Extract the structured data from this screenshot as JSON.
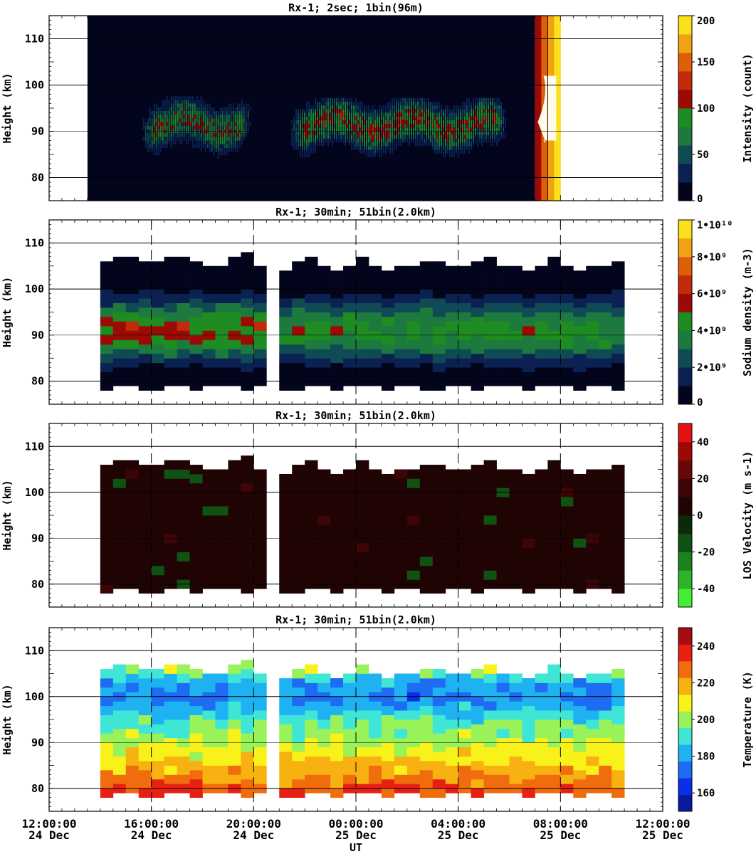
{
  "figure": {
    "xlabel": "UT",
    "x_ticks": [
      {
        "time": "12:00:00",
        "date": "24 Dec"
      },
      {
        "time": "16:00:00",
        "date": "24 Dec"
      },
      {
        "time": "20:00:00",
        "date": "24 Dec"
      },
      {
        "time": "00:00:00",
        "date": "25 Dec"
      },
      {
        "time": "04:00:00",
        "date": "25 Dec"
      },
      {
        "time": "08:00:00",
        "date": "25 Dec"
      },
      {
        "time": "12:00:00",
        "date": "25 Dec"
      }
    ]
  },
  "chart_data": [
    {
      "type": "heatmap",
      "title": "Rx-1;  2sec; 1bin(96m)",
      "ylabel": "Height (km)",
      "y_ticks": [
        80,
        90,
        100,
        110
      ],
      "ylim": [
        75,
        115
      ],
      "xlim_hours_ut": [
        12,
        36
      ],
      "vertical_grid": false,
      "colorbar": {
        "label": "Intensity (count)",
        "ticks": [
          "0",
          "50",
          "100",
          "150",
          "200"
        ],
        "range": [
          0,
          200
        ],
        "colors": [
          "#03051d",
          "#0b2152",
          "#0f4a55",
          "#1c7a3e",
          "#1f8c22",
          "#9c0a05",
          "#c22a0c",
          "#df5f09",
          "#f0a212",
          "#fbe01c"
        ]
      },
      "data_window_hours_ut": [
        13.5,
        31.0
      ],
      "layer_segments": [
        {
          "start": 15.5,
          "end": 20.0,
          "bottom": 80,
          "top": 97,
          "peak_height": 91,
          "peak_intensity": 110
        },
        {
          "start": 21.3,
          "end": 30.0,
          "bottom": 78,
          "top": 97,
          "peak_height": 91,
          "peak_intensity": 120
        }
      ],
      "dawn_saturation": {
        "start": 31.0,
        "end": 32.0,
        "peak_intensity": 200
      }
    },
    {
      "type": "heatmap",
      "title": "Rx-1; 30min; 51bin(2.0km)",
      "ylabel": "Height (km)",
      "y_ticks": [
        80,
        90,
        100,
        110
      ],
      "ylim": [
        75,
        115
      ],
      "colorbar": {
        "label": "Sodium density (m-3)",
        "ticks": [
          "0",
          "2•10⁹",
          "4•10⁹",
          "6•10⁹",
          "8•10⁹",
          "1•10¹⁰"
        ],
        "range": [
          0,
          10
        ],
        "colors": [
          "#03051d",
          "#0b2152",
          "#0f4a55",
          "#1c7a3e",
          "#1f8c22",
          "#9c0a05",
          "#c22a0c",
          "#df5f09",
          "#f0a212",
          "#fbe01c"
        ]
      },
      "segments": [
        {
          "start": 14.0,
          "end": 20.5,
          "bottom": 78,
          "top": 107,
          "peak_height": 91,
          "peak_value": 5.5
        },
        {
          "start": 21.0,
          "end": 34.5,
          "bottom": 78,
          "top": 106,
          "peak_height": 91,
          "peak_value": 4.5
        }
      ]
    },
    {
      "type": "heatmap",
      "title": "Rx-1; 30min; 51bin(2.0km)",
      "ylabel": "Height (km)",
      "y_ticks": [
        80,
        90,
        100,
        110
      ],
      "ylim": [
        75,
        115
      ],
      "colorbar": {
        "label": "LOS Velocity (m s-1)",
        "ticks": [
          "-40",
          "-20",
          "0",
          "20",
          "40"
        ],
        "range": [
          -50,
          50
        ],
        "colors": [
          "#44ee33",
          "#2cb52a",
          "#1b821c",
          "#0f5212",
          "#0a2a0a",
          "#200404",
          "#3d0505",
          "#6a0606",
          "#a00808",
          "#e41212"
        ]
      },
      "segments": [
        {
          "start": 14.0,
          "end": 20.5,
          "bottom": 78,
          "top": 107,
          "value": 3
        },
        {
          "start": 21.0,
          "end": 34.5,
          "bottom": 78,
          "top": 106,
          "value": 3
        }
      ]
    },
    {
      "type": "heatmap",
      "title": "Rx-1; 30min; 51bin(2.0km)",
      "ylabel": "Height (km)",
      "y_ticks": [
        80,
        90,
        100,
        110
      ],
      "ylim": [
        75,
        115
      ],
      "colorbar": {
        "label": "Temperature (K)",
        "ticks": [
          "160",
          "180",
          "200",
          "220",
          "240"
        ],
        "range": [
          150,
          250
        ],
        "colors": [
          "#0a1aa0",
          "#0a2fe8",
          "#1d6cf3",
          "#1fb2f3",
          "#3fe6d6",
          "#9af25a",
          "#f9f21a",
          "#f7b111",
          "#f06c0d",
          "#e62012",
          "#a80b12"
        ]
      },
      "segments": [
        {
          "start": 14.0,
          "end": 20.5,
          "bottom": 78,
          "top": 107
        },
        {
          "start": 21.0,
          "end": 34.5,
          "bottom": 78,
          "top": 106
        }
      ],
      "profile_heights": [
        78,
        81,
        84,
        87,
        90,
        93,
        96,
        99,
        102,
        105
      ],
      "profile_temperatures": [
        235,
        225,
        215,
        208,
        200,
        195,
        185,
        175,
        180,
        200
      ]
    }
  ]
}
